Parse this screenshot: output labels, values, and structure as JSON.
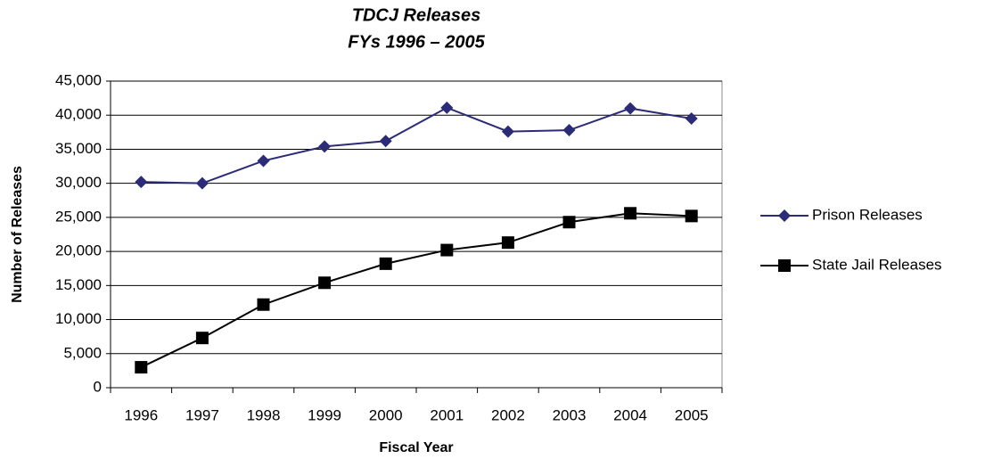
{
  "chart_data": {
    "type": "line",
    "title": "TDCJ Releases",
    "subtitle": "FYs 1996 – 2005",
    "x_label": "Fiscal Year",
    "y_label": "Number of Releases",
    "categories": [
      "1996",
      "1997",
      "1998",
      "1999",
      "2000",
      "2001",
      "2002",
      "2003",
      "2004",
      "2005"
    ],
    "series": [
      {
        "name": "Prison Releases",
        "color": "#2b2b78",
        "marker": "diamond",
        "values": [
          30200,
          30000,
          33300,
          35400,
          36200,
          41100,
          37600,
          37800,
          41000,
          39500
        ]
      },
      {
        "name": "State Jail Releases",
        "color": "#000000",
        "marker": "square",
        "values": [
          3000,
          7300,
          12200,
          15400,
          18200,
          20200,
          21300,
          24300,
          25600,
          25200
        ]
      }
    ],
    "ylim": [
      0,
      45000
    ],
    "yticks": [
      0,
      {
        "value": 5000,
        "label": "5,000"
      },
      {
        "value": 10000,
        "label": "10,000"
      },
      {
        "value": 15000,
        "label": "15,000"
      },
      {
        "value": 20000,
        "label": "20,000"
      },
      {
        "value": 25000,
        "label": "25,000"
      },
      {
        "value": 30000,
        "label": "30,000"
      },
      {
        "value": 35000,
        "label": "35,000"
      },
      {
        "value": 40000,
        "label": "40,000"
      },
      {
        "value": 45000,
        "label": "45,000"
      }
    ],
    "grid": true,
    "legend": "right"
  }
}
